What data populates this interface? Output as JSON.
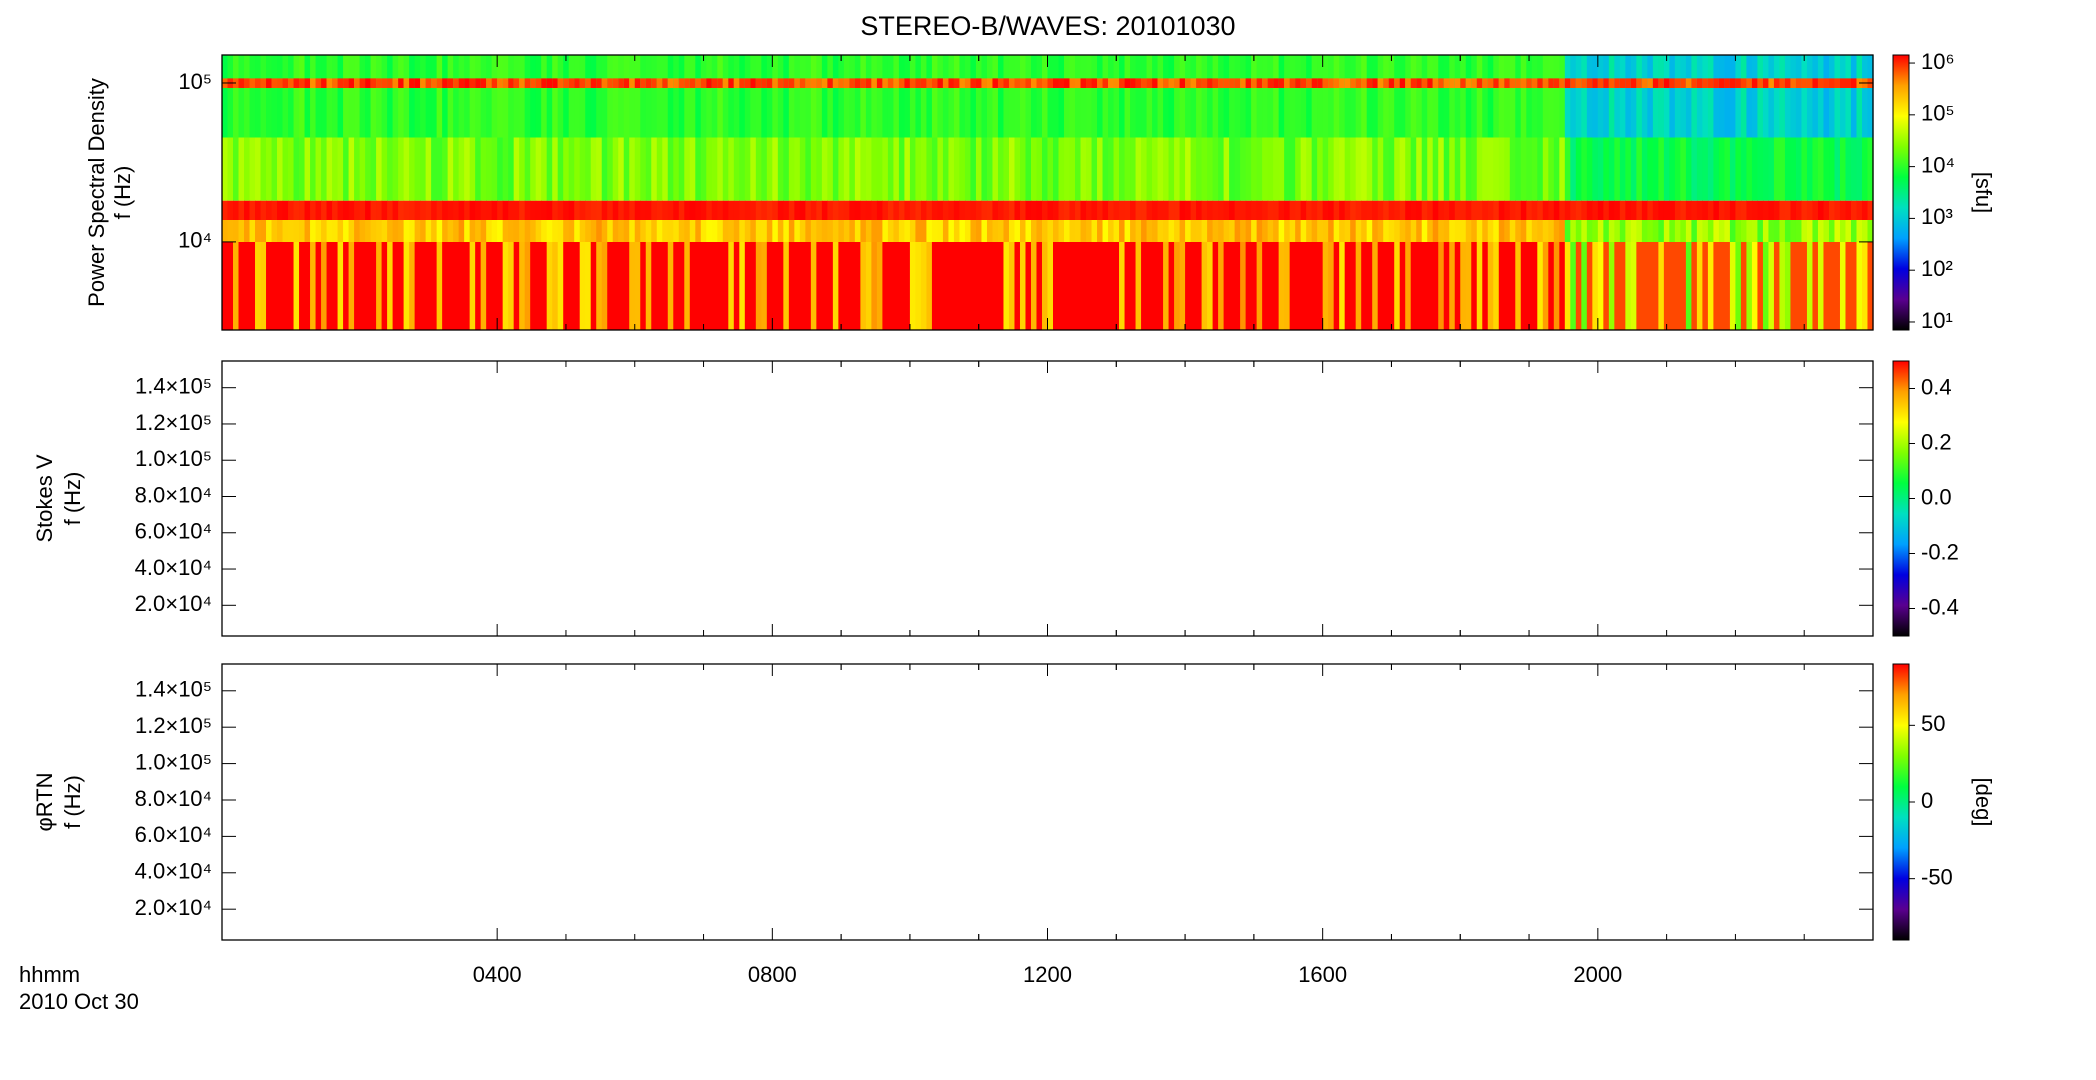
{
  "title": "STEREO-B/WAVES: 20101030",
  "x_axis": {
    "label": "hhmm",
    "date": "2010 Oct 30",
    "xlim": [
      0,
      24
    ],
    "xticks": [
      {
        "value": 4,
        "label": "0400"
      },
      {
        "value": 8,
        "label": "0800"
      },
      {
        "value": 12,
        "label": "1200"
      },
      {
        "value": 16,
        "label": "1600"
      },
      {
        "value": 20,
        "label": "2000"
      }
    ]
  },
  "colormap": [
    "#000000",
    "#5a0090",
    "#0000e0",
    "#00a0ff",
    "#00e0c0",
    "#00ff40",
    "#80ff00",
    "#ffff00",
    "#ffa000",
    "#ff0000"
  ],
  "chart_data": [
    {
      "type": "spectrogram",
      "ylabel": [
        "Power Spectral Density",
        "f (Hz)"
      ],
      "ylog": true,
      "ylim": [
        2790,
        150000
      ],
      "yticks": [
        {
          "value": 10000,
          "label": "10⁴"
        },
        {
          "value": 100000,
          "label": "10⁵"
        }
      ],
      "colorbar": {
        "label": "[sfu]",
        "log": true,
        "lim": [
          7,
          1430000
        ],
        "ticks": [
          {
            "value": 10,
            "label": "10¹"
          },
          {
            "value": 100,
            "label": "10²"
          },
          {
            "value": 1000,
            "label": "10³"
          },
          {
            "value": 10000,
            "label": "10⁴"
          },
          {
            "value": 100000,
            "label": "10⁵"
          },
          {
            "value": 1000000,
            "label": "10⁶"
          }
        ]
      }
    },
    {
      "type": "spectrogram",
      "ylabel": [
        "Stokes V",
        "f (Hz)"
      ],
      "ylog": false,
      "ylim": [
        3070,
        154720
      ],
      "yticks": [
        {
          "value": 20000,
          "label": "2.0×10⁴"
        },
        {
          "value": 40000,
          "label": "4.0×10⁴"
        },
        {
          "value": 60000,
          "label": "6.0×10⁴"
        },
        {
          "value": 80000,
          "label": "8.0×10⁴"
        },
        {
          "value": 100000,
          "label": "1.0×10⁵"
        },
        {
          "value": 120000,
          "label": "1.2×10⁵"
        },
        {
          "value": 140000,
          "label": "1.4×10⁵"
        }
      ],
      "colorbar": {
        "log": false,
        "lim": [
          -0.5,
          0.5
        ],
        "ticks": [
          -0.4,
          -0.2,
          {
            "value": 0,
            "label": "0.0"
          },
          0.2,
          0.4
        ]
      }
    },
    {
      "type": "spectrogram",
      "ylabel": [
        "φRTN",
        "f (Hz)"
      ],
      "ylog": false,
      "ylim": [
        3070,
        154720
      ],
      "yticks": [
        {
          "value": 20000,
          "label": "2.0×10⁴"
        },
        {
          "value": 40000,
          "label": "4.0×10⁴"
        },
        {
          "value": 60000,
          "label": "6.0×10⁴"
        },
        {
          "value": 80000,
          "label": "8.0×10⁴"
        },
        {
          "value": 100000,
          "label": "1.0×10⁵"
        },
        {
          "value": 120000,
          "label": "1.2×10⁵"
        },
        {
          "value": 140000,
          "label": "1.4×10⁵"
        }
      ],
      "colorbar": {
        "label": "[deg]",
        "log": false,
        "lim": [
          -90,
          90
        ],
        "ticks": [
          -50,
          0,
          50
        ]
      }
    }
  ]
}
